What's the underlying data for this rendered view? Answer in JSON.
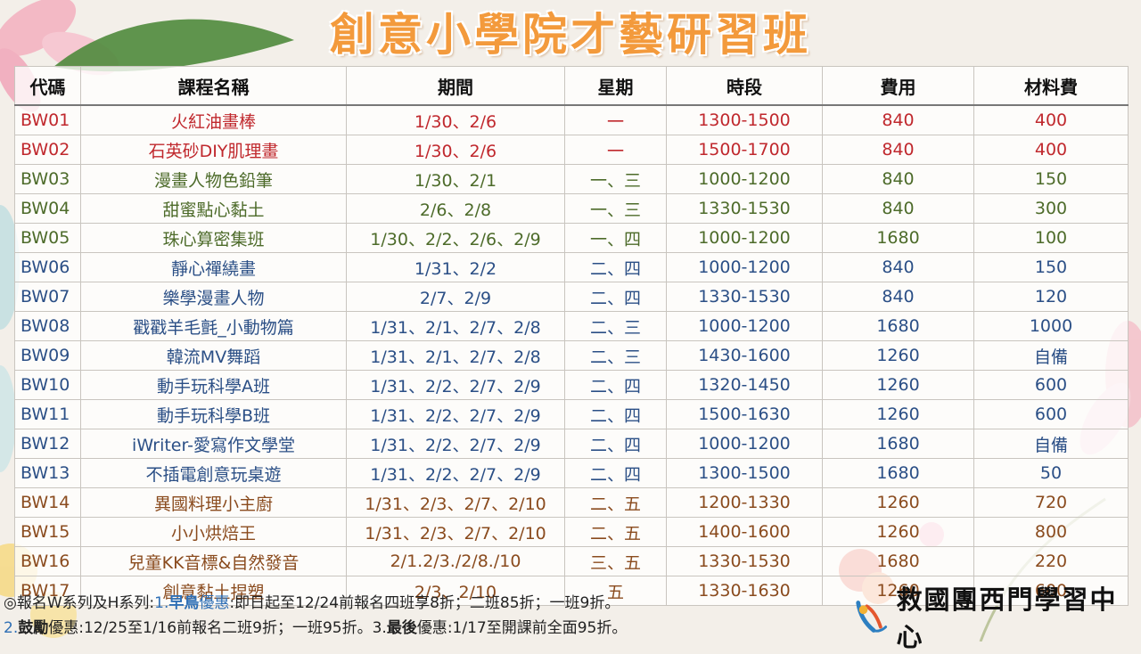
{
  "title": "創意小學院才藝研習班",
  "colors": {
    "red": "#c0282d",
    "green": "#4d6b2a",
    "blue": "#2b4f86",
    "brown": "#8a4b1e",
    "title_orange": "#f39a3c"
  },
  "table": {
    "headers": [
      "代碼",
      "課程名稱",
      "期間",
      "星期",
      "時段",
      "費用",
      "材料費"
    ],
    "rows": [
      {
        "code": "BW01",
        "name": "火紅油畫棒",
        "period": "1/30、2/6",
        "weekday": "一",
        "time": "1300-1500",
        "fee": "840",
        "material": "400",
        "color": "#c0282d"
      },
      {
        "code": "BW02",
        "name": "石英砂DIY肌理畫",
        "period": "1/30、2/6",
        "weekday": "一",
        "time": "1500-1700",
        "fee": "840",
        "material": "400",
        "color": "#c0282d"
      },
      {
        "code": "BW03",
        "name": "漫畫人物色鉛筆",
        "period": "1/30、2/1",
        "weekday": "一、三",
        "time": "1000-1200",
        "fee": "840",
        "material": "150",
        "color": "#4d6b2a"
      },
      {
        "code": "BW04",
        "name": "甜蜜點心黏土",
        "period": "2/6、2/8",
        "weekday": "一、三",
        "time": "1330-1530",
        "fee": "840",
        "material": "300",
        "color": "#4d6b2a"
      },
      {
        "code": "BW05",
        "name": "珠心算密集班",
        "period": "1/30、2/2、2/6、2/9",
        "weekday": "一、四",
        "time": "1000-1200",
        "fee": "1680",
        "material": "100",
        "color": "#4d6b2a"
      },
      {
        "code": "BW06",
        "name": "靜心禪繞畫",
        "period": "1/31、2/2",
        "weekday": "二、四",
        "time": "1000-1200",
        "fee": "840",
        "material": "150",
        "color": "#2b4f86"
      },
      {
        "code": "BW07",
        "name": "樂學漫畫人物",
        "period": "2/7、2/9",
        "weekday": "二、四",
        "time": "1330-1530",
        "fee": "840",
        "material": "120",
        "color": "#2b4f86"
      },
      {
        "code": "BW08",
        "name": "戳戳羊毛氈_小動物篇",
        "period": "1/31、2/1、2/7、2/8",
        "weekday": "二、三",
        "time": "1000-1200",
        "fee": "1680",
        "material": "1000",
        "color": "#2b4f86"
      },
      {
        "code": "BW09",
        "name": "韓流MV舞蹈",
        "period": "1/31、2/1、2/7、2/8",
        "weekday": "二、三",
        "time": "1430-1600",
        "fee": "1260",
        "material": "自備",
        "color": "#2b4f86"
      },
      {
        "code": "BW10",
        "name": "動手玩科學A班",
        "period": "1/31、2/2、2/7、2/9",
        "weekday": "二、四",
        "time": "1320-1450",
        "fee": "1260",
        "material": "600",
        "color": "#2b4f86"
      },
      {
        "code": "BW11",
        "name": "動手玩科學B班",
        "period": "1/31、2/2、2/7、2/9",
        "weekday": "二、四",
        "time": "1500-1630",
        "fee": "1260",
        "material": "600",
        "color": "#2b4f86"
      },
      {
        "code": "BW12",
        "name": "iWriter-愛寫作文學堂",
        "period": "1/31、2/2、2/7、2/9",
        "weekday": "二、四",
        "time": "1000-1200",
        "fee": "1680",
        "material": "自備",
        "color": "#2b4f86"
      },
      {
        "code": "BW13",
        "name": "不插電創意玩桌遊",
        "period": "1/31、2/2、2/7、2/9",
        "weekday": "二、四",
        "time": "1300-1500",
        "fee": "1680",
        "material": "50",
        "color": "#2b4f86"
      },
      {
        "code": "BW14",
        "name": "異國料理小主廚",
        "period": "1/31、2/3、2/7、2/10",
        "weekday": "二、五",
        "time": "1200-1330",
        "fee": "1260",
        "material": "720",
        "color": "#8a4b1e"
      },
      {
        "code": "BW15",
        "name": "小小烘焙王",
        "period": "1/31、2/3、2/7、2/10",
        "weekday": "二、五",
        "time": "1400-1600",
        "fee": "1260",
        "material": "800",
        "color": "#8a4b1e"
      },
      {
        "code": "BW16",
        "name": "兒童KK音標&自然發音",
        "period": "2/1.2/3./2/8./10",
        "weekday": "三、五",
        "time": "1330-1530",
        "fee": "1680",
        "material": "220",
        "color": "#8a4b1e"
      },
      {
        "code": "BW17",
        "name": "創意黏土捏塑",
        "period": "2/3、2/10",
        "weekday": "五",
        "time": "1330-1630",
        "fee": "1260",
        "material": "600",
        "color": "#8a4b1e"
      }
    ]
  },
  "footer": {
    "line1_prefix": "◎報名W系列及H系列:",
    "line1_num": "1.",
    "line1_bold": "早鳥",
    "line1_label": "優惠",
    "line1_rest": ":即日起至12/24前報名四班享8折；二班85折；一班9折。",
    "line2_num": "2.",
    "line2_bold": "鼓勵",
    "line2_label": "優惠",
    "line2_rest": ":12/25至1/16前報名二班9折；一班95折。",
    "line3_num": "3.",
    "line3_bold": "最後",
    "line3_label": "優惠",
    "line3_rest": ":1/17至開課前全面95折。"
  },
  "logo": {
    "text": "救國團西門學習中心",
    "icon": "organization-logo-icon"
  }
}
